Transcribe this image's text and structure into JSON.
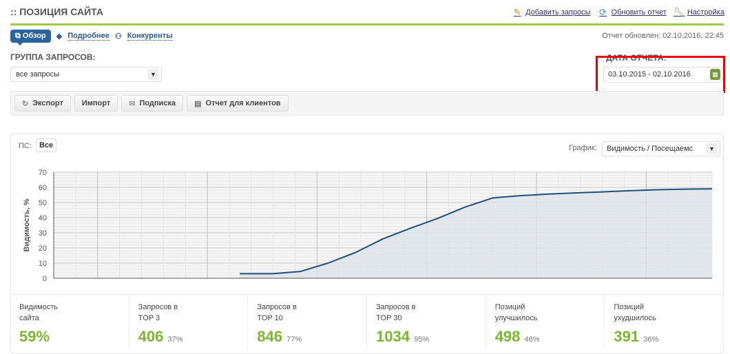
{
  "header": {
    "title": ":: ПОЗИЦИЯ САЙТА",
    "links": [
      {
        "label": "Добавить запросы",
        "icon": "pencil-add-icon"
      },
      {
        "label": "Обновить отчет",
        "icon": "refresh-icon"
      },
      {
        "label": "Настройка",
        "icon": "wrench-icon"
      }
    ]
  },
  "tabs": [
    {
      "label": "Обзор",
      "active": true
    },
    {
      "label": "Подробнее"
    },
    {
      "label": "Конкуренты"
    }
  ],
  "updated": "Отчет обновлен: 02.10.2016, 22:45",
  "group": {
    "label": "ГРУППА ЗАПРОСОВ:",
    "value": "все запросы"
  },
  "date": {
    "label": "ДАТА ОТЧЕТА:",
    "value": "03.10.2015 - 02.10.2016"
  },
  "toolbar": [
    "Экспорт",
    "Импорт",
    "Подписка",
    "Отчет для клиентов"
  ],
  "ps": {
    "label": "ПС:",
    "value": "Все"
  },
  "graph": {
    "label": "График:",
    "value": "Видимость / Посещаемс"
  },
  "chart_data": {
    "type": "area",
    "ylabel": "Видимость, %",
    "ylim": [
      0,
      70
    ],
    "yticks": [
      0,
      10,
      20,
      30,
      40,
      50,
      60,
      70
    ],
    "grid": true,
    "values": [
      null,
      null,
      null,
      null,
      null,
      null,
      null,
      3,
      3,
      4.5,
      10,
      17,
      26,
      33,
      39.5,
      47,
      53,
      54.5,
      55.5,
      56.3,
      57,
      57.8,
      58.4,
      58.8,
      59
    ],
    "color": "#1f4e79"
  },
  "stats": [
    {
      "name": "Видимость\nсайта",
      "value": "59%",
      "pct": ""
    },
    {
      "name": "Запросов в\nTOP 3",
      "value": "406",
      "pct": "37%"
    },
    {
      "name": "Запросов в\nTOP 10",
      "value": "846",
      "pct": "77%"
    },
    {
      "name": "Запросов в\nTOP 30",
      "value": "1034",
      "pct": "95%"
    },
    {
      "name": "Позиций\nулучшилось",
      "value": "498",
      "pct": "46%"
    },
    {
      "name": "Позиций\nухудшилось",
      "value": "391",
      "pct": "36%"
    }
  ]
}
